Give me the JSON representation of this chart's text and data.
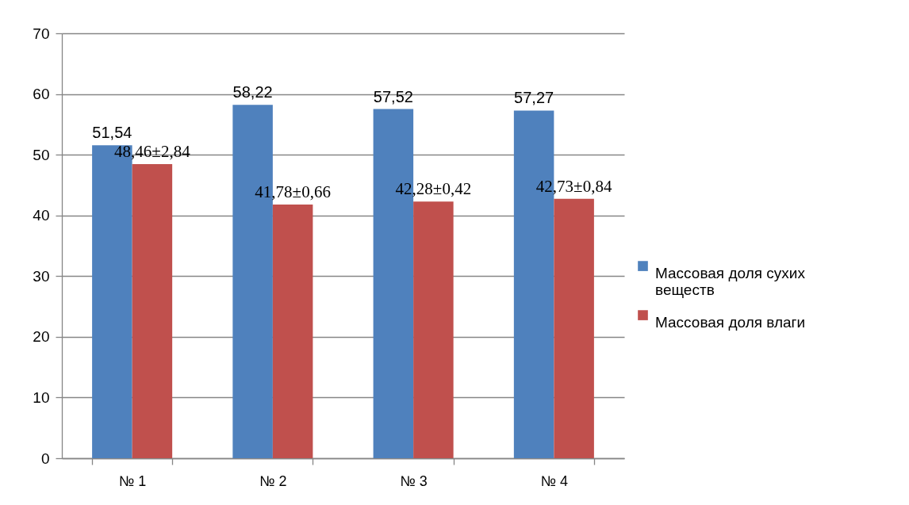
{
  "chart_data": {
    "type": "bar",
    "categories": [
      "№ 1",
      "№ 2",
      "№ 3",
      "№ 4"
    ],
    "series": [
      {
        "name": "Массовая доля сухих веществ",
        "color": "#4f81bd",
        "values": [
          51.54,
          58.22,
          57.52,
          57.27
        ],
        "value_labels": [
          "51,54",
          "58,22",
          "57,52",
          "57,27"
        ]
      },
      {
        "name": "Массовая доля влаги",
        "color": "#c0504d",
        "values": [
          48.46,
          41.78,
          42.28,
          42.73
        ],
        "value_labels": [
          "48,46±2,84",
          "41,78±0,66",
          "42,28±0,42",
          "42,73±0,84"
        ]
      }
    ],
    "ylim": [
      0,
      70
    ],
    "yticks": [
      0,
      10,
      20,
      30,
      40,
      50,
      60,
      70
    ],
    "grid": "y",
    "legend": "right"
  }
}
